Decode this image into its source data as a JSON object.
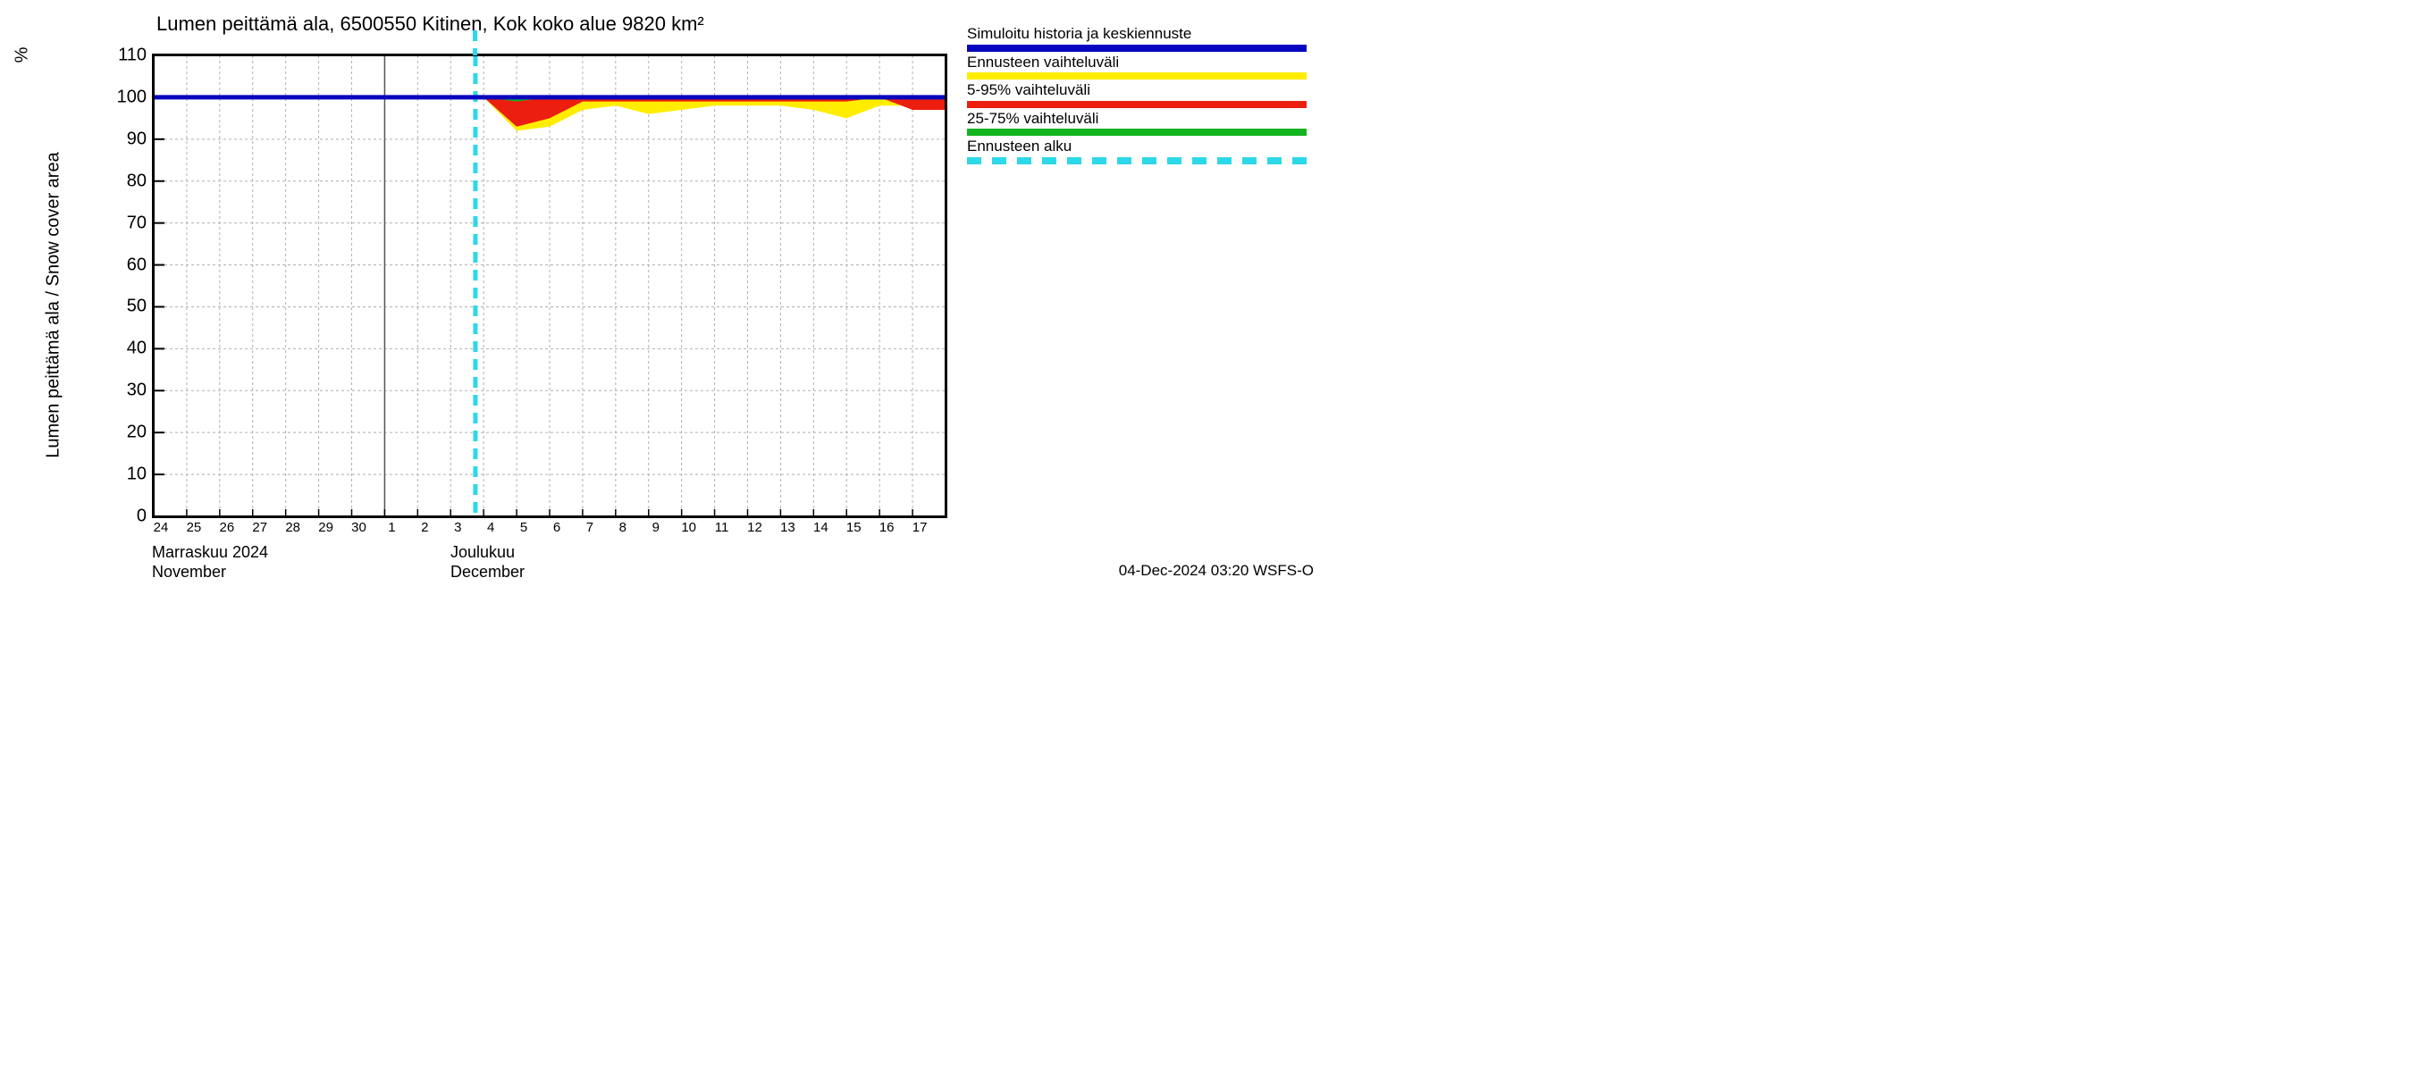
{
  "chart": {
    "type": "area-line",
    "title": "Lumen peittämä ala, 6500550 Kitinen, Kok koko alue 9820 km²",
    "y_axis_label": "Lumen peittämä ala / Snow cover area",
    "y_axis_unit": "%",
    "background_color": "#ffffff",
    "grid_color": "#b0b0b0",
    "axis_color": "#000000",
    "title_fontsize": 22,
    "label_fontsize": 20,
    "tick_fontsize_y": 20,
    "tick_fontsize_x": 15,
    "ylim": [
      0,
      110
    ],
    "ytick_step": 10,
    "yticks": [
      0,
      10,
      20,
      30,
      40,
      50,
      60,
      70,
      80,
      90,
      100,
      110
    ],
    "x_days": [
      "24",
      "25",
      "26",
      "27",
      "28",
      "29",
      "30",
      "1",
      "2",
      "3",
      "4",
      "5",
      "6",
      "7",
      "8",
      "9",
      "10",
      "11",
      "12",
      "13",
      "14",
      "15",
      "16",
      "17"
    ],
    "x_month_break_index": 7,
    "months": [
      {
        "fi": "Marraskuu 2024",
        "en": "November"
      },
      {
        "fi": "Joulukuu",
        "en": "December"
      }
    ],
    "forecast_start_index_fractional": 9.75,
    "series": {
      "simulated_line": {
        "color": "#0707bf",
        "width": 5,
        "values": [
          100,
          100,
          100,
          100,
          100,
          100,
          100,
          100,
          100,
          100,
          100,
          100,
          100,
          100,
          100,
          100,
          100,
          100,
          100,
          100,
          100,
          100,
          100,
          100
        ]
      },
      "range_forecast_yellow": {
        "color": "#ffed00",
        "upper": [
          100,
          100,
          100,
          100,
          100,
          100,
          100,
          100,
          100,
          100,
          100,
          100,
          100,
          100,
          100,
          100,
          100,
          100,
          100,
          100,
          100,
          100,
          100,
          100
        ],
        "lower": [
          100,
          100,
          100,
          100,
          100,
          100,
          100,
          100,
          100,
          100,
          100,
          92,
          93,
          97,
          98,
          96,
          97,
          98,
          98,
          98,
          97,
          95,
          98,
          98
        ]
      },
      "range_5_95_red": {
        "color": "#ec1e0f",
        "upper": [
          100,
          100,
          100,
          100,
          100,
          100,
          100,
          100,
          100,
          100,
          100,
          100,
          100,
          100,
          100,
          100,
          100,
          100,
          100,
          100,
          100,
          100,
          100,
          100
        ],
        "lower": [
          100,
          100,
          100,
          100,
          100,
          100,
          100,
          100,
          100,
          100,
          100,
          93,
          95,
          99,
          99,
          99,
          99,
          99,
          99,
          99,
          99,
          99,
          100,
          97
        ]
      },
      "range_25_75_green": {
        "color": "#12b41f",
        "upper": [
          100,
          100,
          100,
          100,
          100,
          100,
          100,
          100,
          100,
          100,
          100,
          100,
          100,
          100,
          100,
          100,
          100,
          100,
          100,
          100,
          100,
          100,
          100,
          100
        ],
        "lower": [
          100,
          100,
          100,
          100,
          100,
          100,
          100,
          100,
          100,
          100,
          100,
          99,
          100,
          100,
          100,
          100,
          100,
          100,
          100,
          100,
          100,
          100,
          100,
          100
        ]
      },
      "forecast_start_marker": {
        "color": "#2dd8e8",
        "dash": [
          12,
          8
        ],
        "width": 5
      }
    }
  },
  "legend": {
    "entries": [
      {
        "label": "Simuloitu historia ja keskiennuste",
        "swatch_color": "#0707bf",
        "style": "solid"
      },
      {
        "label": "Ennusteen vaihteluväli",
        "swatch_color": "#ffed00",
        "style": "solid"
      },
      {
        "label": "5-95% vaihteluväli",
        "swatch_color": "#ec1e0f",
        "style": "solid"
      },
      {
        "label": "25-75% vaihteluväli",
        "swatch_color": "#12b41f",
        "style": "solid"
      },
      {
        "label": "Ennusteen alku",
        "swatch_color": "#2dd8e8",
        "style": "dashed"
      }
    ]
  },
  "footer": "04-Dec-2024 03:20 WSFS-O"
}
